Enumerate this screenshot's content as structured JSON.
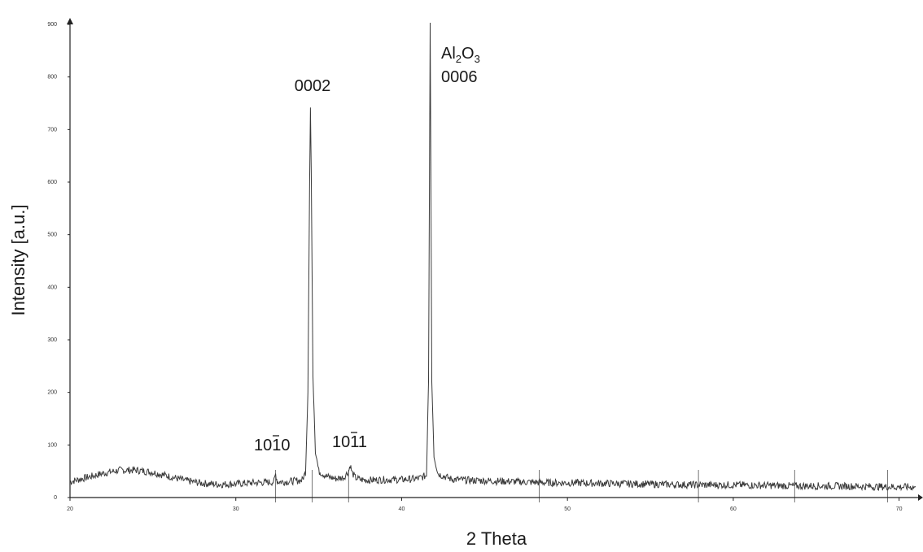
{
  "chart_data": {
    "type": "line",
    "title": "",
    "xlabel": "2 Theta",
    "ylabel": "Intensity [a.u.]",
    "xlim": [
      20,
      71
    ],
    "ylim": [
      0,
      900
    ],
    "x_ticks": [
      20,
      30,
      40,
      50,
      60,
      70
    ],
    "y_ticks": [
      0,
      100,
      200,
      300,
      400,
      500,
      600,
      700,
      800,
      900
    ],
    "grid": false,
    "legend": "none",
    "line_color": "#3a3a3a",
    "series": [
      {
        "name": "",
        "x": [
          20,
          21,
          22,
          23,
          24,
          25,
          26,
          27,
          28,
          29,
          30,
          31,
          32,
          32.3,
          32.4,
          32.5,
          33,
          34,
          34.2,
          34.35,
          34.45,
          34.5,
          34.55,
          34.65,
          34.8,
          35,
          35.5,
          36,
          36.5,
          36.8,
          36.9,
          37.0,
          37.2,
          37.5,
          38,
          39,
          40,
          41,
          41.5,
          41.62,
          41.68,
          41.72,
          41.76,
          41.82,
          41.95,
          42.2,
          43,
          44,
          45,
          46,
          47,
          48,
          49,
          50,
          52,
          54,
          56,
          58,
          60,
          62,
          64,
          66,
          68,
          70,
          71
        ],
        "y": [
          30,
          38,
          46,
          52,
          52,
          48,
          40,
          32,
          27,
          25,
          26,
          28,
          29,
          30,
          45,
          30,
          30,
          33,
          48,
          200,
          600,
          742,
          620,
          230,
          90,
          50,
          40,
          36,
          38,
          50,
          62,
          48,
          38,
          34,
          33,
          34,
          34,
          36,
          42,
          220,
          620,
          950,
          640,
          220,
          80,
          45,
          35,
          33,
          32,
          31,
          30,
          29,
          28,
          28,
          27,
          26,
          25,
          24,
          24,
          23,
          22,
          22,
          21,
          20,
          20
        ]
      }
    ],
    "annotations": [
      {
        "text": "0002",
        "x": 34.5,
        "y": 742
      },
      {
        "text_main": "Al",
        "sub1": "2",
        "text_mid": "O",
        "sub2": "3",
        "line2": "0006",
        "x": 41.72,
        "y": 860
      },
      {
        "text_base": "1010",
        "x": 32.4,
        "y": 60
      },
      {
        "text_base": "1011",
        "x": 36.9,
        "y": 65
      }
    ],
    "reference_markers": [
      32.4,
      34.6,
      36.8,
      48.3,
      57.9,
      63.7,
      69.3
    ]
  }
}
